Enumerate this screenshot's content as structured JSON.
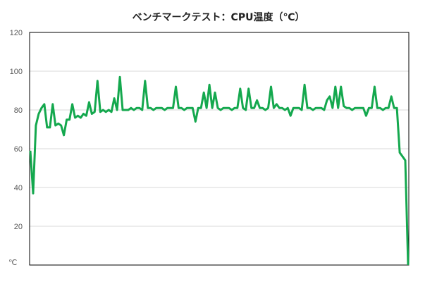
{
  "chart_data": {
    "type": "line",
    "title": "ベンチマークテスト：CPU温度（℃）",
    "ylabel": "℃",
    "ylim": [
      0,
      120
    ],
    "yticks": [
      20,
      40,
      60,
      80,
      100,
      120
    ],
    "grid": true,
    "legend": "none",
    "colors": {
      "line": "#14a84e",
      "grid": "#d9d9d9",
      "axis": "#000000"
    },
    "series": [
      {
        "values": [
          59,
          37,
          72,
          78,
          81,
          83,
          71,
          71,
          83,
          72,
          73,
          72,
          67,
          75,
          75,
          83,
          76,
          77,
          76,
          78,
          77,
          84,
          78,
          79,
          95,
          79,
          80,
          79,
          80,
          79,
          86,
          80,
          97,
          80,
          80,
          80,
          81,
          80,
          81,
          81,
          80,
          95,
          81,
          81,
          80,
          81,
          81,
          81,
          80,
          81,
          81,
          81,
          92,
          81,
          81,
          80,
          81,
          81,
          81,
          74,
          81,
          81,
          89,
          81,
          93,
          81,
          89,
          81,
          80,
          81,
          81,
          81,
          80,
          81,
          81,
          91,
          81,
          80,
          91,
          81,
          81,
          85,
          81,
          81,
          80,
          81,
          92,
          81,
          83,
          81,
          81,
          80,
          81,
          77,
          81,
          81,
          81,
          80,
          93,
          81,
          81,
          80,
          81,
          81,
          81,
          80,
          85,
          87,
          81,
          92,
          81,
          92,
          82,
          81,
          81,
          80,
          81,
          81,
          81,
          81,
          77,
          81,
          81,
          92,
          81,
          81,
          80,
          81,
          81,
          87,
          81,
          81,
          58,
          56,
          54,
          0
        ]
      }
    ]
  }
}
